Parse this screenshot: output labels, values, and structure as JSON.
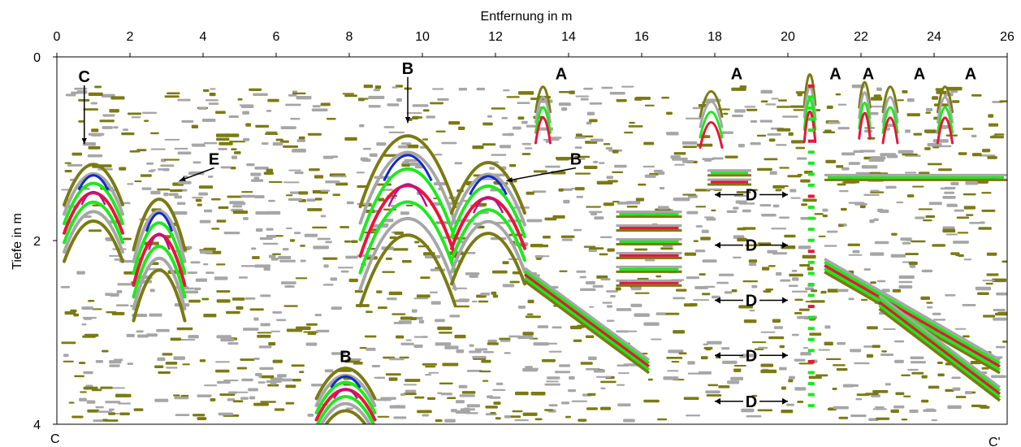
{
  "chart_data": {
    "type": "heatmap",
    "title": "",
    "xlabel": "Entfernung in m",
    "ylabel": "Tiefe in m",
    "xlim": [
      0,
      26
    ],
    "ylim": [
      0,
      4
    ],
    "y_inverted": true,
    "x_ticks": [
      "0",
      "2",
      "4",
      "6",
      "8",
      "10",
      "12",
      "14",
      "16",
      "18",
      "20",
      "22",
      "24",
      "26"
    ],
    "y_ticks": [
      "0",
      "2",
      "4"
    ],
    "corner_labels": {
      "start": "C",
      "end": "C'"
    },
    "colors": {
      "olive": "#7a7a12",
      "gray": "#a6a6a6",
      "green": "#1ee81e",
      "red": "#e8143c",
      "blue": "#1428c8",
      "magenta": "#b4148c"
    },
    "annotations": [
      {
        "label": "C",
        "x": 0.75,
        "y": 0.15,
        "target_x": 0.75,
        "target_y": 0.95
      },
      {
        "label": "E",
        "x": 4.3,
        "y": 1.05,
        "target_x": 3.35,
        "target_y": 1.35
      },
      {
        "label": "B",
        "x": 9.6,
        "y": 0.06,
        "target_x": 9.6,
        "target_y": 0.72
      },
      {
        "label": "B",
        "x": 14.2,
        "y": 1.05,
        "target_x": 12.3,
        "target_y": 1.35
      },
      {
        "label": "B",
        "x": 7.9,
        "y": 3.2
      },
      {
        "label": "A",
        "x": 13.8,
        "y": 0.12
      },
      {
        "label": "A",
        "x": 18.6,
        "y": 0.12
      },
      {
        "label": "A",
        "x": 21.3,
        "y": 0.12
      },
      {
        "label": "A",
        "x": 22.2,
        "y": 0.12
      },
      {
        "label": "A",
        "x": 23.6,
        "y": 0.12
      },
      {
        "label": "A",
        "x": 25.0,
        "y": 0.12
      },
      {
        "label": "D",
        "x": 19.0,
        "y": 1.5,
        "double_arrow": true
      },
      {
        "label": "D",
        "x": 19.0,
        "y": 2.05,
        "double_arrow": true
      },
      {
        "label": "D",
        "x": 19.0,
        "y": 2.65,
        "double_arrow": true
      },
      {
        "label": "D",
        "x": 19.0,
        "y": 3.25,
        "double_arrow": true
      },
      {
        "label": "D",
        "x": 19.0,
        "y": 3.75,
        "double_arrow": true
      }
    ],
    "features": {
      "hyperbolas": [
        {
          "x": 13.3,
          "y": 0.25,
          "width": 0.4,
          "height": 0.5,
          "tag": "A"
        },
        {
          "x": 17.9,
          "y": 0.3,
          "width": 0.6,
          "height": 0.5,
          "tag": "A"
        },
        {
          "x": 20.6,
          "y": 0.1,
          "width": 0.3,
          "height": 0.6,
          "tag": "A"
        },
        {
          "x": 22.1,
          "y": 0.2,
          "width": 0.3,
          "height": 0.5,
          "tag": "A"
        },
        {
          "x": 22.8,
          "y": 0.25,
          "width": 0.4,
          "height": 0.5,
          "tag": "A"
        },
        {
          "x": 24.3,
          "y": 0.25,
          "width": 0.4,
          "height": 0.5,
          "tag": "A"
        },
        {
          "x": 9.6,
          "y": 0.65,
          "width": 2.6,
          "height": 1.4,
          "tag": "B"
        },
        {
          "x": 11.8,
          "y": 1.0,
          "width": 2.0,
          "height": 1.0,
          "tag": "B"
        },
        {
          "x": 7.9,
          "y": 3.3,
          "width": 1.6,
          "height": 0.6,
          "tag": "B"
        },
        {
          "x": 1.0,
          "y": 1.05,
          "width": 1.6,
          "height": 0.8,
          "tag": "C"
        },
        {
          "x": 2.8,
          "y": 1.4,
          "width": 1.4,
          "height": 1.0,
          "tag": "E"
        }
      ],
      "horizontal_layers": [
        {
          "x": [
            15.3,
            17.1
          ],
          "depths": [
            1.7,
            1.85,
            2.0,
            2.15,
            2.3,
            2.45
          ]
        },
        {
          "x": [
            17.8,
            19.0
          ],
          "depths": [
            1.25,
            1.35
          ]
        },
        {
          "x": [
            21.0,
            26.0
          ],
          "depths": [
            1.3
          ]
        }
      ],
      "dipping_reflectors": [
        {
          "x": [
            12.8,
            16.2
          ],
          "y": [
            2.3,
            3.3
          ]
        },
        {
          "x": [
            21.0,
            25.8
          ],
          "y": [
            2.2,
            3.3
          ]
        },
        {
          "x": [
            22.5,
            25.8
          ],
          "y": [
            2.6,
            3.6
          ]
        }
      ]
    }
  }
}
